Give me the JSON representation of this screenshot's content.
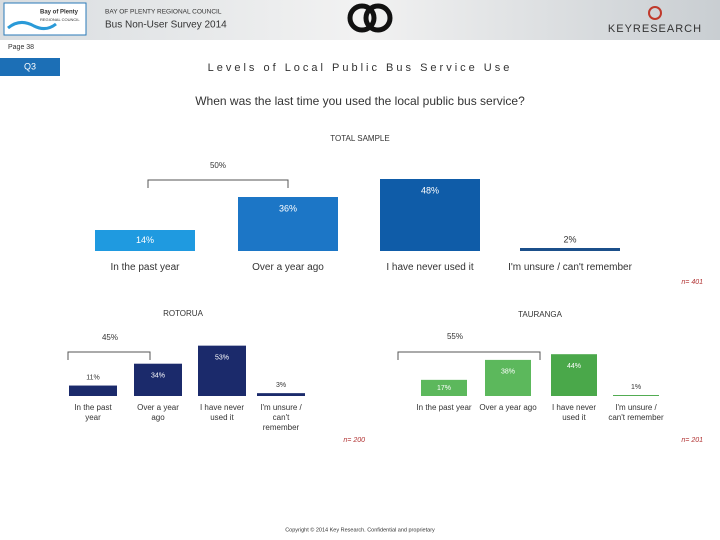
{
  "header": {
    "logo_line1": "Bay of Plenty",
    "logo_line2": "REGIONAL COUNCIL",
    "org": "BAY OF PLENTY REGIONAL COUNCIL",
    "survey": "Bus Non-User Survey 2014",
    "brand": "KEYRESEARCH",
    "page": "Page 38",
    "question_id": "Q3",
    "title": "Levels of Local Public Bus Service Use",
    "question": "When was the last time you used the local public bus service?"
  },
  "chart_data": [
    {
      "type": "bar",
      "title": "TOTAL SAMPLE",
      "categories": [
        "In the past year",
        "Over a year ago",
        "I have never used it",
        "I'm unsure / can't remember"
      ],
      "values": [
        14,
        36,
        48,
        2
      ],
      "value_labels": [
        "14%",
        "36%",
        "48%",
        "2%"
      ],
      "colors": [
        "#1f9ae0",
        "#1c76c6",
        "#0f5ca8",
        "#1b4f8a"
      ],
      "group_label": "50%",
      "note": "n= 401"
    },
    {
      "type": "bar",
      "title": "ROTORUA",
      "categories": [
        "In the past year",
        "Over a year ago",
        "I have never used it",
        "I'm unsure / can't remember"
      ],
      "values": [
        11,
        34,
        53,
        3
      ],
      "value_labels": [
        "11%",
        "34%",
        "53%",
        "3%"
      ],
      "colors": [
        "#1b2a6b",
        "#1b2a6b",
        "#1b2a6b",
        "#1b2a6b"
      ],
      "group_label": "45%",
      "note": "n= 200"
    },
    {
      "type": "bar",
      "title": "TAURANGA",
      "categories": [
        "In the past year",
        "Over a year ago",
        "I have never used it",
        "I'm unsure / can't remember"
      ],
      "values": [
        17,
        38,
        44,
        1
      ],
      "value_labels": [
        "17%",
        "38%",
        "44%",
        "1%"
      ],
      "colors": [
        "#5cb85c",
        "#5cb85c",
        "#4aa84a",
        "#4aa84a"
      ],
      "group_label": "55%",
      "note": "n= 201"
    }
  ],
  "footer": {
    "copyright": "Copyright © 2014 Key Research. Confidential and proprietary"
  }
}
